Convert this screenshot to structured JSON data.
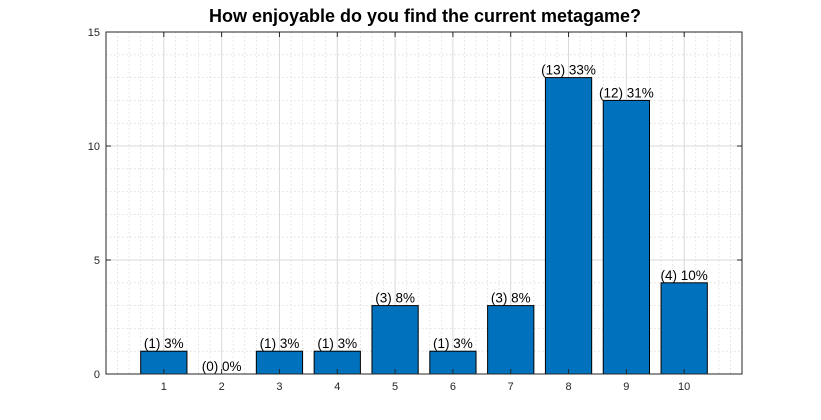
{
  "chart_data": {
    "type": "bar",
    "title": "How enjoyable do you find the current metagame?",
    "xlabel": "",
    "ylabel": "",
    "categories": [
      "1",
      "2",
      "3",
      "4",
      "5",
      "6",
      "7",
      "8",
      "9",
      "10"
    ],
    "values": [
      1,
      0,
      1,
      1,
      3,
      1,
      3,
      13,
      12,
      4
    ],
    "data_labels": [
      "(1) 3%",
      "(0) 0%",
      "(1) 3%",
      "(1) 3%",
      "(3) 8%",
      "(1) 3%",
      "(3) 8%",
      "(13) 33%",
      "(12) 31%",
      "(4) 10%"
    ],
    "ylim": [
      0,
      15
    ],
    "yticks": [
      "0",
      "5",
      "10",
      "15"
    ],
    "xlim": [
      0,
      11
    ],
    "grid": true,
    "minor_grid": true,
    "bar_color": "#0072bd"
  }
}
